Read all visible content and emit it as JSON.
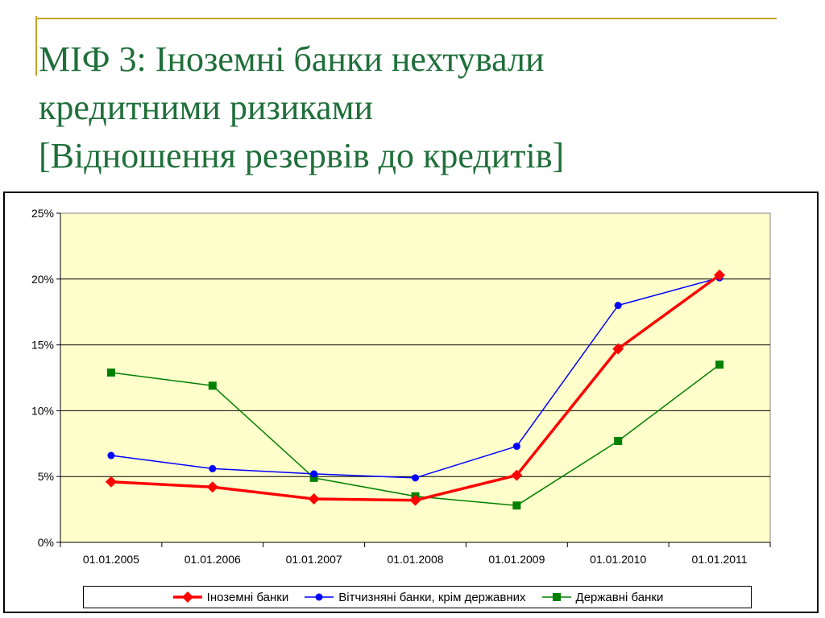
{
  "slide": {
    "title_lines": [
      "МІФ 3: Іноземні банки нехтували",
      "кредитними ризиками",
      "[Відношення резервів до кредитів]"
    ]
  },
  "chart_data": {
    "type": "line",
    "categories": [
      "01.01.2005",
      "01.01.2006",
      "01.01.2007",
      "01.01.2008",
      "01.01.2009",
      "01.01.2010",
      "01.01.2011"
    ],
    "y_ticks": [
      "0%",
      "5%",
      "10%",
      "15%",
      "20%",
      "25%"
    ],
    "ylim": [
      0,
      25
    ],
    "y_unit": "%",
    "grid": "horizontal",
    "legend_position": "bottom",
    "plot_background": "#ffffcc",
    "series": [
      {
        "name": "Іноземні банки",
        "color": "#ff0000",
        "marker": "diamond",
        "values": [
          4.6,
          4.2,
          3.3,
          3.2,
          5.1,
          14.7,
          20.3
        ]
      },
      {
        "name": "Вітчизняні банки, крім державних",
        "color": "#0000ff",
        "marker": "circle",
        "values": [
          6.6,
          5.6,
          5.2,
          4.9,
          7.3,
          18.0,
          20.1
        ]
      },
      {
        "name": "Державні банки",
        "color": "#008000",
        "marker": "square",
        "values": [
          12.9,
          11.9,
          4.9,
          3.5,
          2.8,
          7.7,
          13.5
        ]
      }
    ]
  }
}
